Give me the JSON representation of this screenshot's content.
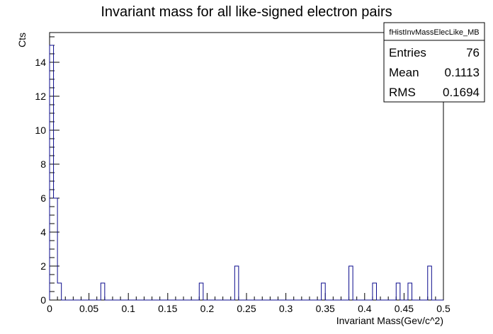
{
  "chart_data": {
    "type": "bar",
    "style": "step-histogram",
    "title": "Invariant mass for all like-signed electron pairs",
    "xlabel": "Invariant Mass(Gev/c^2)",
    "ylabel": "Cts",
    "xlim": [
      0,
      0.5
    ],
    "ylim": [
      0,
      15.75
    ],
    "bin_width": 0.005,
    "x_ticks": [
      {
        "value": 0,
        "label": "0"
      },
      {
        "value": 0.05,
        "label": "0.05"
      },
      {
        "value": 0.1,
        "label": "0.1"
      },
      {
        "value": 0.15,
        "label": "0.15"
      },
      {
        "value": 0.2,
        "label": "0.2"
      },
      {
        "value": 0.25,
        "label": "0.25"
      },
      {
        "value": 0.3,
        "label": "0.3"
      },
      {
        "value": 0.35,
        "label": "0.35"
      },
      {
        "value": 0.4,
        "label": "0.4"
      },
      {
        "value": 0.45,
        "label": "0.45"
      },
      {
        "value": 0.5,
        "label": "0.5"
      }
    ],
    "y_ticks": [
      {
        "value": 0,
        "label": "0"
      },
      {
        "value": 2,
        "label": "2"
      },
      {
        "value": 4,
        "label": "4"
      },
      {
        "value": 6,
        "label": "6"
      },
      {
        "value": 8,
        "label": "8"
      },
      {
        "value": 10,
        "label": "10"
      },
      {
        "value": 12,
        "label": "12"
      },
      {
        "value": 14,
        "label": "14"
      }
    ],
    "values": [
      15,
      6,
      1,
      0,
      0,
      0,
      0,
      0,
      0,
      0,
      0,
      0,
      0,
      1,
      0,
      0,
      0,
      0,
      0,
      0,
      0,
      0,
      0,
      0,
      0,
      0,
      0,
      0,
      0,
      0,
      0,
      0,
      0,
      0,
      0,
      0,
      0,
      0,
      1,
      0,
      0,
      0,
      0,
      0,
      0,
      0,
      0,
      2,
      0,
      0,
      0,
      0,
      0,
      0,
      0,
      0,
      0,
      0,
      0,
      0,
      0,
      0,
      0,
      0,
      0,
      0,
      0,
      0,
      0,
      1,
      0,
      0,
      0,
      0,
      0,
      0,
      2,
      0,
      0,
      0,
      0,
      0,
      1,
      0,
      0,
      0,
      0,
      0,
      1,
      0,
      0,
      1,
      0,
      0,
      0,
      0,
      2,
      0,
      0,
      0
    ],
    "line_color": "#0a0a8c",
    "stats_box": {
      "name": "fHistInvMassElecLike_MB",
      "rows": [
        {
          "label": "Entries",
          "value": "76"
        },
        {
          "label": "Mean",
          "value": "0.1113"
        },
        {
          "label": "RMS",
          "value": "0.1694"
        }
      ]
    }
  }
}
